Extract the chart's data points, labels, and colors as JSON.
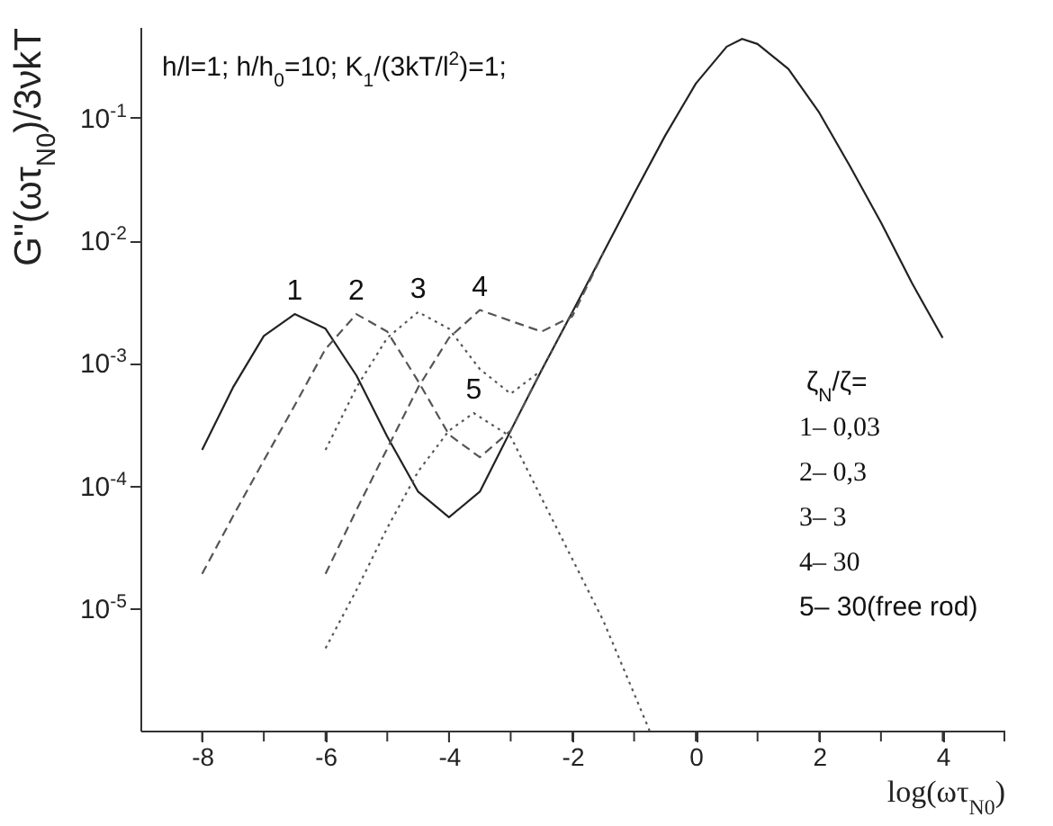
{
  "chart_data": {
    "type": "line",
    "ylabel": "G\"(ωτ$_{N0}$)/3νkT",
    "xlabel": "log(ωτ$_{N0}$)",
    "annotations": [
      "h/l=1;   h/h$_{0}$=10;   K$_{1}$/(3kT/l$^{2}$)=1;",
      "ζ$_{N}$/ζ=",
      "1– 0,03",
      "2– 0,3",
      "3– 3",
      "4– 30",
      "5– 30(free rod)"
    ],
    "xlim": [
      -9,
      5
    ],
    "xticks": [
      -8,
      {
        "value": -7,
        "label": null
      },
      -6,
      {
        "value": -5,
        "label": null
      },
      -4,
      {
        "value": -3,
        "label": null
      },
      -2,
      {
        "value": -1,
        "label": null
      },
      0,
      {
        "value": 1,
        "label": null
      },
      2,
      {
        "value": 3,
        "label": null
      },
      4,
      {
        "value": 5,
        "label": null
      }
    ],
    "ylim": [
      1e-06,
      0.55
    ],
    "yticks": [
      {
        "value": 1e-05,
        "label": "10$^{-5}$"
      },
      {
        "value": 0.0001,
        "label": "10$^{-4}$"
      },
      {
        "value": 0.001,
        "label": "10$^{-3}$"
      },
      {
        "value": 0.01,
        "label": "10$^{-2}$"
      },
      {
        "value": 0.1,
        "label": "10$^{-1}$"
      }
    ],
    "log": "y",
    "grid": false,
    "marker": "none",
    "series": [
      {
        "name": "1",
        "color": "#222222",
        "line_style": "solid",
        "x": [
          -8,
          -7.5,
          -7,
          -6.5,
          -6,
          -5.5,
          -5,
          -4.5,
          -4,
          -3.5,
          -3,
          -2.5,
          -2,
          -1.5,
          -1,
          -0.5,
          0,
          0.5,
          0.75,
          1,
          1.5,
          2,
          2.5,
          3,
          3.5,
          4
        ],
        "values": [
          0.000195,
          0.00063,
          0.00166,
          0.0025,
          0.0019,
          0.00079,
          0.00025,
          8.9e-05,
          5.5e-05,
          8.9e-05,
          0.00028,
          0.00087,
          0.0026,
          0.0079,
          0.024,
          0.071,
          0.19,
          0.38,
          0.44,
          0.4,
          0.25,
          0.11,
          0.04,
          0.014,
          0.0045,
          0.0016
        ]
      },
      {
        "name": "2",
        "color": "#555555",
        "line_style": "dashed",
        "x": [
          -8,
          -7.5,
          -7,
          -6.5,
          -6,
          -5.5,
          -5,
          -4.5,
          -4,
          -3.5,
          -3,
          -2.5
        ],
        "values": [
          1.9e-05,
          5.6e-05,
          0.00016,
          0.00045,
          0.0013,
          0.0025,
          0.0018,
          0.00071,
          0.00026,
          0.00017,
          0.00028,
          0.00087
        ]
      },
      {
        "name": "3",
        "color": "#555555",
        "line_style": "dotted",
        "x": [
          -6,
          -5.5,
          -5,
          -4.5,
          -4,
          -3.5,
          -3,
          -2.5,
          -2
        ],
        "values": [
          0.000195,
          0.00063,
          0.0016,
          0.0026,
          0.0019,
          0.00089,
          0.00056,
          0.00087,
          0.0026
        ]
      },
      {
        "name": "4",
        "color": "#555555",
        "line_style": "dashed",
        "x": [
          -6,
          -5.5,
          -5,
          -4.5,
          -4,
          -3.5,
          -3,
          -2.5,
          -2,
          -1.5
        ],
        "values": [
          1.9e-05,
          6.3e-05,
          0.0002,
          0.00063,
          0.0016,
          0.0027,
          0.0022,
          0.0018,
          0.0024,
          0.0079
        ]
      },
      {
        "name": "5",
        "color": "#555555",
        "line_style": "dotted",
        "x": [
          -6,
          -5.5,
          -5,
          -4.5,
          -4,
          -3.6,
          -3,
          -2.5,
          -2,
          -1.5,
          -1,
          -0.75
        ],
        "values": [
          4.7e-06,
          1.4e-05,
          4.5e-05,
          0.00013,
          0.00028,
          0.00039,
          0.00025,
          7.9e-05,
          2.5e-05,
          7.9e-06,
          2e-06,
          1e-06
        ]
      }
    ]
  }
}
